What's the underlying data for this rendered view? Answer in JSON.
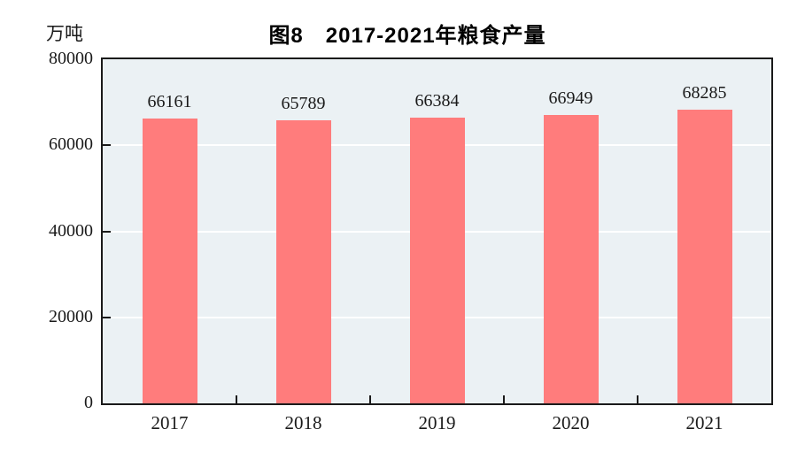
{
  "chart_data": {
    "type": "bar",
    "title": "图8　2017-2021年粮食产量",
    "unit_label": "万吨",
    "categories": [
      "2017",
      "2018",
      "2019",
      "2020",
      "2021"
    ],
    "values": [
      66161,
      65789,
      66384,
      66949,
      68285
    ],
    "xlabel": "",
    "ylabel": "万吨",
    "ylim": [
      0,
      80000
    ],
    "yticks": [
      0,
      20000,
      40000,
      60000,
      80000
    ],
    "grid": true,
    "legend": "none",
    "colors": {
      "bar_fill": "#FF7C7C",
      "plot_background": "#EBF1F4",
      "axis": "#1a1a1a",
      "gridline": "#ffffff",
      "page_background": "#ffffff",
      "text": "#1a1a1a"
    }
  }
}
